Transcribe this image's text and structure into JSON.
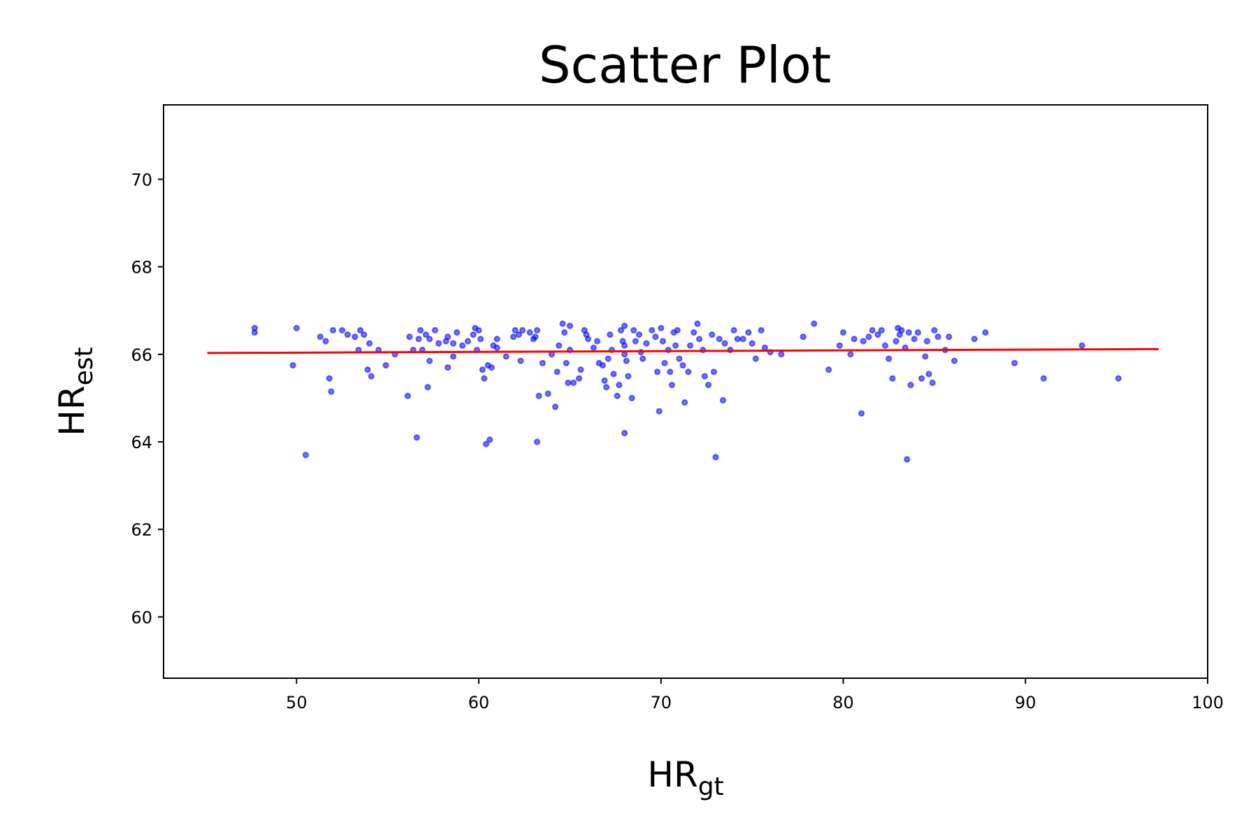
{
  "chart_data": {
    "type": "scatter",
    "title": "Scatter Plot",
    "xlabel": {
      "main": "HR",
      "sub": "gt"
    },
    "ylabel": {
      "main": "HR",
      "sub": "est"
    },
    "xlim": [
      42.7,
      100
    ],
    "ylim": [
      58.6,
      71.7
    ],
    "xticks": [
      50,
      60,
      70,
      80,
      90,
      100
    ],
    "yticks": [
      60,
      62,
      64,
      66,
      68,
      70
    ],
    "grid": false,
    "legend": "none",
    "colors": {
      "points": "#0000ff",
      "fit_line": "#ff0000"
    },
    "fit_line": {
      "x": [
        45.1,
        97.3
      ],
      "y": [
        66.03,
        66.12
      ]
    },
    "points": [
      [
        47.7,
        66.6
      ],
      [
        47.7,
        66.5
      ],
      [
        49.8,
        65.75
      ],
      [
        50.0,
        66.6
      ],
      [
        50.5,
        63.7
      ],
      [
        51.3,
        66.4
      ],
      [
        51.6,
        66.3
      ],
      [
        51.8,
        65.45
      ],
      [
        51.9,
        65.15
      ],
      [
        52.0,
        66.55
      ],
      [
        52.5,
        66.55
      ],
      [
        52.8,
        66.45
      ],
      [
        53.2,
        66.4
      ],
      [
        53.4,
        66.1
      ],
      [
        53.5,
        66.55
      ],
      [
        53.7,
        66.45
      ],
      [
        53.9,
        65.65
      ],
      [
        54.0,
        66.25
      ],
      [
        54.1,
        65.5
      ],
      [
        54.5,
        66.1
      ],
      [
        54.9,
        65.75
      ],
      [
        55.4,
        66.0
      ],
      [
        56.1,
        65.05
      ],
      [
        56.2,
        66.4
      ],
      [
        56.4,
        66.1
      ],
      [
        56.6,
        64.1
      ],
      [
        56.7,
        66.35
      ],
      [
        56.8,
        66.55
      ],
      [
        56.9,
        66.1
      ],
      [
        57.1,
        66.45
      ],
      [
        57.3,
        66.35
      ],
      [
        57.2,
        65.25
      ],
      [
        57.3,
        65.85
      ],
      [
        57.6,
        66.55
      ],
      [
        57.8,
        66.25
      ],
      [
        58.2,
        66.3
      ],
      [
        58.3,
        66.4
      ],
      [
        58.3,
        65.7
      ],
      [
        58.6,
        66.25
      ],
      [
        58.8,
        66.5
      ],
      [
        58.6,
        65.95
      ],
      [
        59.1,
        66.2
      ],
      [
        59.4,
        66.3
      ],
      [
        59.7,
        66.45
      ],
      [
        59.8,
        66.6
      ],
      [
        60.0,
        66.55
      ],
      [
        60.1,
        66.35
      ],
      [
        59.9,
        66.1
      ],
      [
        60.2,
        65.65
      ],
      [
        60.3,
        65.45
      ],
      [
        60.4,
        63.95
      ],
      [
        60.6,
        64.05
      ],
      [
        60.5,
        65.75
      ],
      [
        60.7,
        65.7
      ],
      [
        60.8,
        66.2
      ],
      [
        61.0,
        66.35
      ],
      [
        61.0,
        66.15
      ],
      [
        61.5,
        65.95
      ],
      [
        61.9,
        66.4
      ],
      [
        62.0,
        66.55
      ],
      [
        62.2,
        66.45
      ],
      [
        62.4,
        66.55
      ],
      [
        62.3,
        65.85
      ],
      [
        62.8,
        66.5
      ],
      [
        63.0,
        66.35
      ],
      [
        63.2,
        66.55
      ],
      [
        63.1,
        66.4
      ],
      [
        63.3,
        65.05
      ],
      [
        63.2,
        64.0
      ],
      [
        63.5,
        65.8
      ],
      [
        63.8,
        65.1
      ],
      [
        64.0,
        66.0
      ],
      [
        64.2,
        64.8
      ],
      [
        64.3,
        65.6
      ],
      [
        64.4,
        66.2
      ],
      [
        64.6,
        66.7
      ],
      [
        64.7,
        66.5
      ],
      [
        64.8,
        65.8
      ],
      [
        65.0,
        66.65
      ],
      [
        64.9,
        65.35
      ],
      [
        65.0,
        66.1
      ],
      [
        65.2,
        65.35
      ],
      [
        65.5,
        65.45
      ],
      [
        65.6,
        65.65
      ],
      [
        65.8,
        66.55
      ],
      [
        65.9,
        66.45
      ],
      [
        66.0,
        66.35
      ],
      [
        66.3,
        66.15
      ],
      [
        66.5,
        66.3
      ],
      [
        66.6,
        65.8
      ],
      [
        66.8,
        65.75
      ],
      [
        66.9,
        65.4
      ],
      [
        67.0,
        65.25
      ],
      [
        67.1,
        65.9
      ],
      [
        67.2,
        66.45
      ],
      [
        67.3,
        66.1
      ],
      [
        67.4,
        65.55
      ],
      [
        67.6,
        65.05
      ],
      [
        67.7,
        65.3
      ],
      [
        67.8,
        66.55
      ],
      [
        67.9,
        66.3
      ],
      [
        68.0,
        66.65
      ],
      [
        68.0,
        66.2
      ],
      [
        68.0,
        66.0
      ],
      [
        68.1,
        65.85
      ],
      [
        68.2,
        65.5
      ],
      [
        68.0,
        64.2
      ],
      [
        68.4,
        65.0
      ],
      [
        68.5,
        66.55
      ],
      [
        68.6,
        66.3
      ],
      [
        68.8,
        66.45
      ],
      [
        68.9,
        66.05
      ],
      [
        69.0,
        65.9
      ],
      [
        69.2,
        66.25
      ],
      [
        69.5,
        66.55
      ],
      [
        69.7,
        66.4
      ],
      [
        69.8,
        65.6
      ],
      [
        69.9,
        64.7
      ],
      [
        70.0,
        66.6
      ],
      [
        70.1,
        66.3
      ],
      [
        70.2,
        65.8
      ],
      [
        70.4,
        66.1
      ],
      [
        70.5,
        65.6
      ],
      [
        70.6,
        65.3
      ],
      [
        70.7,
        66.5
      ],
      [
        70.8,
        66.2
      ],
      [
        70.9,
        66.55
      ],
      [
        71.0,
        65.9
      ],
      [
        71.2,
        65.75
      ],
      [
        71.3,
        64.9
      ],
      [
        71.5,
        65.6
      ],
      [
        71.6,
        66.2
      ],
      [
        71.8,
        66.5
      ],
      [
        72.0,
        66.7
      ],
      [
        72.1,
        66.35
      ],
      [
        72.3,
        66.1
      ],
      [
        72.4,
        65.5
      ],
      [
        72.6,
        65.3
      ],
      [
        72.8,
        66.45
      ],
      [
        72.9,
        65.6
      ],
      [
        73.0,
        63.65
      ],
      [
        73.2,
        66.35
      ],
      [
        73.4,
        64.95
      ],
      [
        73.5,
        66.25
      ],
      [
        73.8,
        66.1
      ],
      [
        74.0,
        66.55
      ],
      [
        74.2,
        66.35
      ],
      [
        74.5,
        66.35
      ],
      [
        74.8,
        66.5
      ],
      [
        75.0,
        66.25
      ],
      [
        75.2,
        65.9
      ],
      [
        75.5,
        66.55
      ],
      [
        75.7,
        66.15
      ],
      [
        76.0,
        66.05
      ],
      [
        76.6,
        66.0
      ],
      [
        77.8,
        66.4
      ],
      [
        78.4,
        66.7
      ],
      [
        79.2,
        65.65
      ],
      [
        79.8,
        66.2
      ],
      [
        80.0,
        66.5
      ],
      [
        80.4,
        66.0
      ],
      [
        80.6,
        66.35
      ],
      [
        81.0,
        64.65
      ],
      [
        81.1,
        66.3
      ],
      [
        81.4,
        66.4
      ],
      [
        81.6,
        66.55
      ],
      [
        81.9,
        66.45
      ],
      [
        82.1,
        66.55
      ],
      [
        82.3,
        66.2
      ],
      [
        82.5,
        65.9
      ],
      [
        82.7,
        65.45
      ],
      [
        82.9,
        66.3
      ],
      [
        83.0,
        66.6
      ],
      [
        83.1,
        66.45
      ],
      [
        83.2,
        66.55
      ],
      [
        83.4,
        66.15
      ],
      [
        83.5,
        63.6
      ],
      [
        83.6,
        66.5
      ],
      [
        83.7,
        65.3
      ],
      [
        83.9,
        66.35
      ],
      [
        84.1,
        66.5
      ],
      [
        84.3,
        65.45
      ],
      [
        84.5,
        65.95
      ],
      [
        84.6,
        66.3
      ],
      [
        84.7,
        65.55
      ],
      [
        84.9,
        65.35
      ],
      [
        85.0,
        66.55
      ],
      [
        85.2,
        66.4
      ],
      [
        85.6,
        66.1
      ],
      [
        85.8,
        66.4
      ],
      [
        86.1,
        65.85
      ],
      [
        87.2,
        66.35
      ],
      [
        87.8,
        66.5
      ],
      [
        89.4,
        65.8
      ],
      [
        91.0,
        65.45
      ],
      [
        93.1,
        66.2
      ],
      [
        95.1,
        65.45
      ]
    ]
  }
}
